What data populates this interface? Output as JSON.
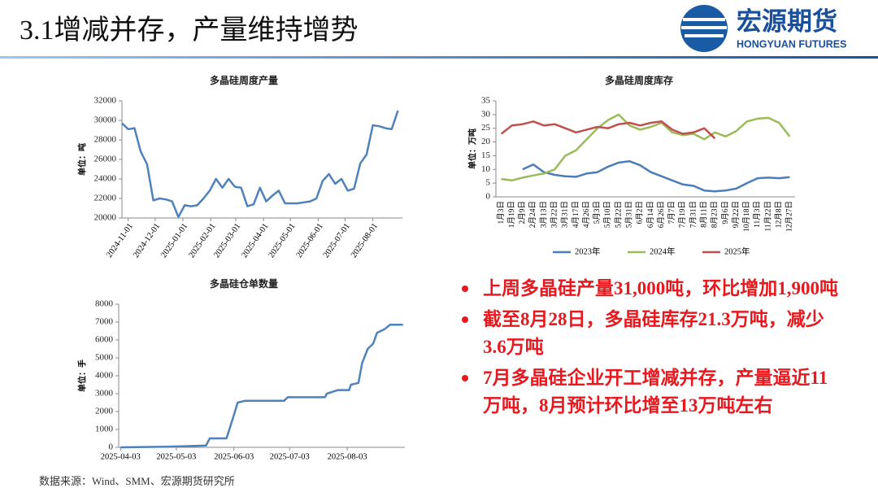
{
  "slide": {
    "title": "3.1增减并存，产量维持增势",
    "logo_cn": "宏源期货",
    "logo_en": "HONGYUAN FUTURES",
    "bullets": [
      "上周多晶硅产量31,000吨，环比增加1,900吨",
      "截至8月28日，多晶硅库存21.3万吨，减少3.6万吨",
      "7月多晶硅企业开工增减并存，产量逼近11万吨，8月预计环比增至13万吨左右"
    ],
    "source": "数据来源：Wind、SMM、宏源期货研究所"
  },
  "chart_data": [
    {
      "type": "line",
      "title": "多晶硅周度产量",
      "y_label": "单位：吨",
      "color": "#4f81bd",
      "x": [
        "2024-10-25",
        "2024-11-01",
        "2024-11-08",
        "2024-11-15",
        "2024-11-22",
        "2024-11-29",
        "2024-12-06",
        "2024-12-13",
        "2024-12-20",
        "2024-12-27",
        "2025-01-03",
        "2025-01-10",
        "2025-01-17",
        "2025-01-24",
        "2025-01-31",
        "2025-02-07",
        "2025-02-14",
        "2025-02-21",
        "2025-02-28",
        "2025-03-07",
        "2025-03-14",
        "2025-03-21",
        "2025-03-28",
        "2025-04-04",
        "2025-04-11",
        "2025-04-18",
        "2025-04-25",
        "2025-05-02",
        "2025-05-09",
        "2025-05-16",
        "2025-05-23",
        "2025-05-30",
        "2025-06-06",
        "2025-06-13",
        "2025-06-20",
        "2025-06-27",
        "2025-07-04",
        "2025-07-11",
        "2025-07-18",
        "2025-07-25",
        "2025-08-01",
        "2025-08-08",
        "2025-08-15",
        "2025-08-22",
        "2025-08-29"
      ],
      "values": [
        29700,
        29100,
        29200,
        26800,
        25500,
        21800,
        22000,
        21900,
        21700,
        20100,
        21300,
        21200,
        21300,
        22000,
        22800,
        24000,
        23100,
        24000,
        23200,
        23100,
        21200,
        21400,
        23100,
        21700,
        22300,
        22800,
        21500,
        21500,
        21500,
        21600,
        21700,
        22000,
        23800,
        24500,
        23500,
        24000,
        22800,
        23000,
        25600,
        26500,
        29500,
        29400,
        29200,
        29100,
        31000
      ],
      "xlim": [
        "2024-10-25",
        "2025-09-03"
      ],
      "xticks": [
        "2024-11-01",
        "2024-12-01",
        "2025-01-01",
        "2025-02-01",
        "2025-03-01",
        "2025-04-01",
        "2025-05-01",
        "2025-06-01",
        "2025-07-01",
        "2025-08-01"
      ],
      "ylim": [
        20000,
        32000
      ],
      "yticks": [
        20000,
        22000,
        24000,
        26000,
        28000,
        30000,
        32000
      ]
    },
    {
      "type": "line",
      "title": "多晶硅周度库存",
      "y_label": "单位：万吨",
      "legend": "bottom",
      "categories": [
        "1月3日",
        "1月19日",
        "2月9日",
        "2月24日",
        "3月13日",
        "3月22日",
        "3月31日",
        "4月17日",
        "4月26日",
        "5月3日",
        "5月10日",
        "5月22日",
        "5月31日",
        "6月2日",
        "6月14日",
        "6月26日",
        "7月7日",
        "7月19日",
        "7月31日",
        "8月11日",
        "8月23日",
        "9月6日",
        "9月22日",
        "10月18日",
        "11月3日",
        "11月22日",
        "12月8日",
        "12月27日"
      ],
      "series": [
        {
          "name": "2023年",
          "color": "#4a7ebb",
          "values": [
            null,
            null,
            10,
            11.8,
            9,
            8,
            7.5,
            7.3,
            8.5,
            9,
            11,
            12.5,
            13,
            11.5,
            9,
            7.5,
            6,
            4.5,
            4,
            2.3,
            2,
            2.3,
            3,
            5,
            6.8,
            7,
            6.8,
            7.2
          ]
        },
        {
          "name": "2024年",
          "color": "#9bbb59",
          "values": [
            6.5,
            6,
            7,
            7.8,
            8.5,
            10,
            15,
            17,
            21,
            25,
            28,
            30,
            26,
            24.5,
            25.5,
            27,
            23.5,
            22.5,
            23,
            21,
            23.5,
            22,
            24,
            27.5,
            28.5,
            28.8,
            27,
            22
          ]
        },
        {
          "name": "2025年",
          "color": "#c0504d",
          "values": [
            23,
            26,
            26.5,
            27.5,
            26,
            26.5,
            25,
            23.5,
            24.5,
            25.5,
            25,
            26.5,
            27,
            26,
            27,
            27.5,
            24.5,
            23,
            23.5,
            25,
            21.3,
            null,
            null,
            null,
            null,
            null,
            null,
            null
          ]
        }
      ],
      "ylim": [
        0,
        35
      ],
      "yticks": [
        0,
        5,
        10,
        15,
        20,
        25,
        30,
        35
      ]
    },
    {
      "type": "line",
      "title": "多晶硅仓单数量",
      "y_label": "单位：手",
      "color": "#4f81bd",
      "x": [
        "2025-04-03",
        "2025-04-28",
        "2025-05-13",
        "2025-05-19",
        "2025-05-21",
        "2025-05-30",
        "2025-06-03",
        "2025-06-05",
        "2025-06-09",
        "2025-06-30",
        "2025-07-02",
        "2025-07-22",
        "2025-07-23",
        "2025-07-29",
        "2025-08-04",
        "2025-08-05",
        "2025-08-09",
        "2025-08-11",
        "2025-08-14",
        "2025-08-17",
        "2025-08-19",
        "2025-08-23",
        "2025-08-26",
        "2025-09-02"
      ],
      "values": [
        0,
        30,
        80,
        100,
        500,
        500,
        1800,
        2500,
        2600,
        2600,
        2800,
        2800,
        3000,
        3200,
        3200,
        3500,
        3600,
        4700,
        5500,
        5800,
        6400,
        6600,
        6850,
        6850
      ],
      "xlim": [
        "2025-04-02",
        "2025-09-03"
      ],
      "xticks": [
        "2025-04-03",
        "2025-05-03",
        "2025-06-03",
        "2025-07-03",
        "2025-08-03"
      ],
      "ylim": [
        0,
        8000
      ],
      "yticks": [
        0,
        1000,
        2000,
        3000,
        4000,
        5000,
        6000,
        7000,
        8000
      ]
    }
  ]
}
